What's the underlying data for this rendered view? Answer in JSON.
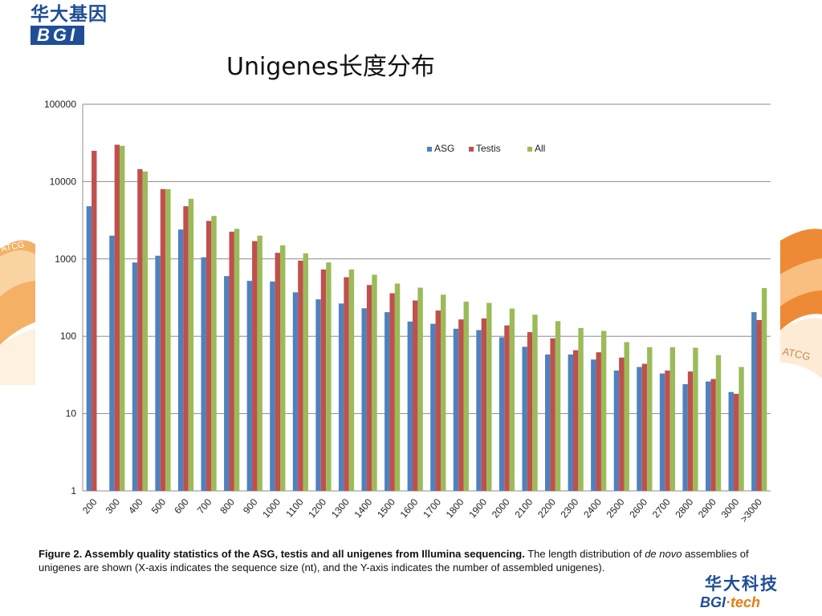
{
  "slide": {
    "title": "Unigenes长度分布",
    "logo_top": {
      "cn": "华大基因",
      "en": "BGI"
    },
    "logo_bottom": {
      "cn": "华大科技",
      "en_a": "BGI",
      "en_b": "·tech"
    },
    "deco_left_text": "ATCG",
    "deco_right_text": "ATCG",
    "caption": {
      "bold": "Figure 2. Assembly quality statistics of the ASG, testis and all unigenes from Illumina sequencing.",
      "text1": " The length distribution of ",
      "italic": "de novo",
      "text2": " assemblies of unigenes are shown (X-axis indicates the sequence size (nt), and the Y-axis indicates the number of assembled unigenes)."
    }
  },
  "chart_data": {
    "type": "bar",
    "yscale": "log",
    "ylim": [
      1,
      100000
    ],
    "yticks": [
      "1",
      "10",
      "100",
      "1000",
      "10000",
      "100000"
    ],
    "grid": true,
    "legend_position": "top-right",
    "categories": [
      "200",
      "300",
      "400",
      "500",
      "600",
      "700",
      "800",
      "900",
      "1000",
      "1100",
      "1200",
      "1300",
      "1400",
      "1500",
      "1600",
      "1700",
      "1800",
      "1900",
      "2000",
      "2100",
      "2200",
      "2300",
      "2400",
      "2500",
      "2600",
      "2700",
      "2800",
      "2900",
      "3000",
      ">3000"
    ],
    "series": [
      {
        "name": "ASG",
        "color": "#4f81bd",
        "values": [
          4800,
          2000,
          900,
          1100,
          2400,
          1050,
          600,
          520,
          510,
          370,
          300,
          265,
          230,
          205,
          155,
          145,
          125,
          120,
          97,
          73,
          58,
          58,
          50,
          36,
          40,
          33,
          24,
          26,
          19,
          205
        ]
      },
      {
        "name": "Testis",
        "color": "#c0504d",
        "values": [
          25000,
          30000,
          14500,
          8000,
          4800,
          3100,
          2250,
          1700,
          1200,
          950,
          730,
          580,
          460,
          360,
          290,
          215,
          165,
          170,
          138,
          113,
          94,
          66,
          62,
          53,
          44,
          36,
          35,
          28,
          18,
          162
        ]
      },
      {
        "name": "All",
        "color": "#9bbb59",
        "values": [
          null,
          29000,
          13500,
          8000,
          6000,
          3600,
          2450,
          2000,
          1500,
          1180,
          900,
          730,
          625,
          480,
          425,
          345,
          280,
          270,
          228,
          190,
          157,
          128,
          117,
          84,
          72,
          72,
          71,
          57,
          40,
          420
        ]
      }
    ]
  }
}
